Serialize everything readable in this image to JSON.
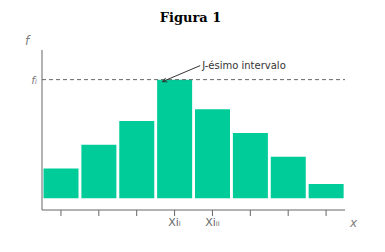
{
  "chart_data": {
    "type": "bar",
    "title": "Figura 1",
    "categories": [
      null,
      null,
      null,
      "Xiᵢ",
      "Xiᵢᵢ",
      null,
      null,
      null
    ],
    "values": [
      0.25,
      0.45,
      0.65,
      1.0,
      0.75,
      0.55,
      0.35,
      0.12
    ],
    "color": "#00CC99",
    "xlabel": "x",
    "ylabel": "f",
    "ylim": [
      -0.1,
      1.25
    ],
    "grid": false,
    "tick_labels": "x",
    "annotations": [
      {
        "text": "J-ésimo intervalo"
      },
      {
        "text": "fᵢ"
      }
    ]
  }
}
